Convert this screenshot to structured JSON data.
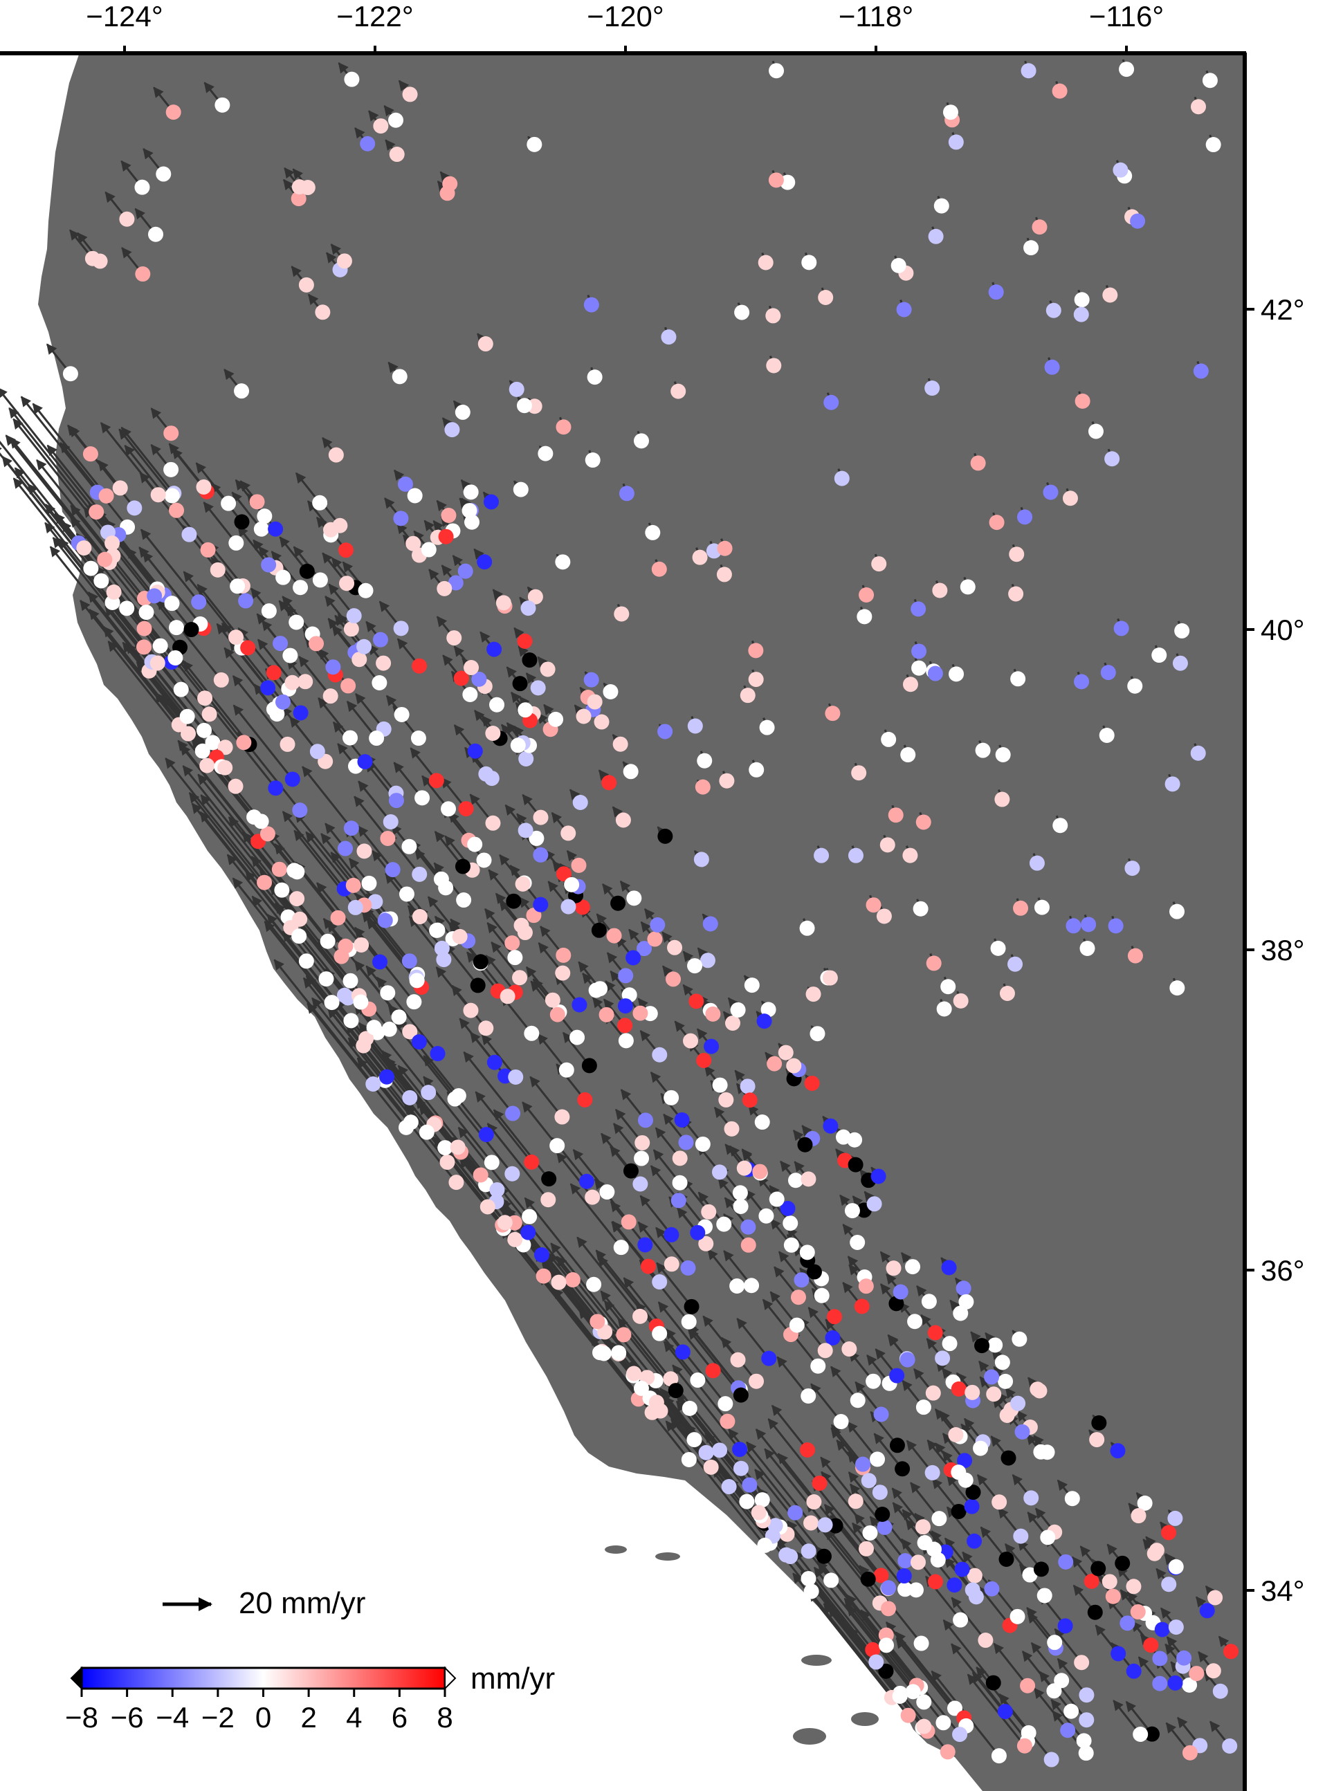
{
  "map": {
    "lon_range": [
      -125.0,
      -115.5
    ],
    "lat_range": [
      32.0,
      43.5
    ],
    "land_color": "#666666",
    "water_color": "#ffffff",
    "vector_color": "#333333",
    "x_ticks": [
      {
        "value": -124,
        "label": "−124°"
      },
      {
        "value": -122,
        "label": "−122°"
      },
      {
        "value": -120,
        "label": "−120°"
      },
      {
        "value": -118,
        "label": "−118°"
      },
      {
        "value": -116,
        "label": "−116°"
      }
    ],
    "y_ticks": [
      {
        "value": 42,
        "label": "42°"
      },
      {
        "value": 40,
        "label": "40°"
      },
      {
        "value": 38,
        "label": "38°"
      },
      {
        "value": 36,
        "label": "36°"
      },
      {
        "value": 34,
        "label": "34°"
      }
    ]
  },
  "vector_legend": {
    "label": "20 mm/yr",
    "magnitude_mm_yr": 20
  },
  "colorbar": {
    "unit_label": "mm/yr",
    "min": -8,
    "max": 8,
    "colors": [
      "#0000ff",
      "#ffffff",
      "#ff0000"
    ],
    "tick_labels": [
      "−8",
      "−6",
      "−4",
      "−2",
      "0",
      "2",
      "4",
      "6",
      "8"
    ]
  },
  "station_colors": {
    "very_negative": "#2a2aff",
    "negative": "#8080ff",
    "slightly_negative": "#c8c8ff",
    "neutral": "#ffffff",
    "slightly_positive": "#ffd6d6",
    "positive": "#ffa8a8",
    "very_positive": "#ff3030",
    "saturated": "#000000"
  }
}
